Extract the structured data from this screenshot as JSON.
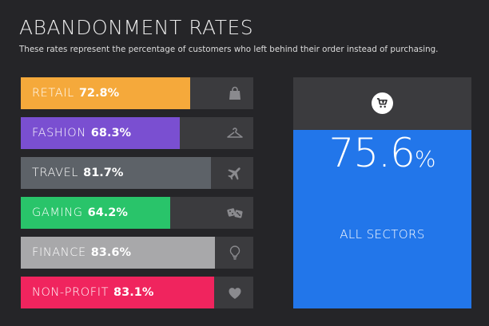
{
  "title": "ABANDONMENT RATES",
  "subtitle": "These rates represent the percentage of customers who left behind their order instead of purchasing.",
  "chart_data": {
    "type": "bar",
    "orientation": "horizontal",
    "title": "ABANDONMENT RATES",
    "subtitle": "These rates represent the percentage of customers who left behind their order instead of purchasing.",
    "unit": "%",
    "xlim": [
      0,
      100
    ],
    "categories": [
      "RETAIL",
      "FASHION",
      "TRAVEL",
      "GAMING",
      "FINANCE",
      "NON-PROFIT"
    ],
    "values": [
      72.8,
      68.3,
      81.7,
      64.2,
      83.6,
      83.1
    ],
    "value_labels": [
      "72.8%",
      "68.3%",
      "81.7%",
      "64.2%",
      "83.6%",
      "83.1%"
    ],
    "colors": [
      "#f5a93b",
      "#7a4fd1",
      "#5d6268",
      "#29c46a",
      "#a8a8aa",
      "#f0245e"
    ],
    "icons": [
      "shopping-bag-icon",
      "hanger-icon",
      "airplane-icon",
      "dice-icon",
      "lightbulb-icon",
      "heart-icon"
    ],
    "summary": {
      "value": "75.6",
      "unit": "%",
      "label": "ALL SECTORS",
      "color": "#2276ea",
      "icon": "shopping-cart-icon"
    }
  }
}
